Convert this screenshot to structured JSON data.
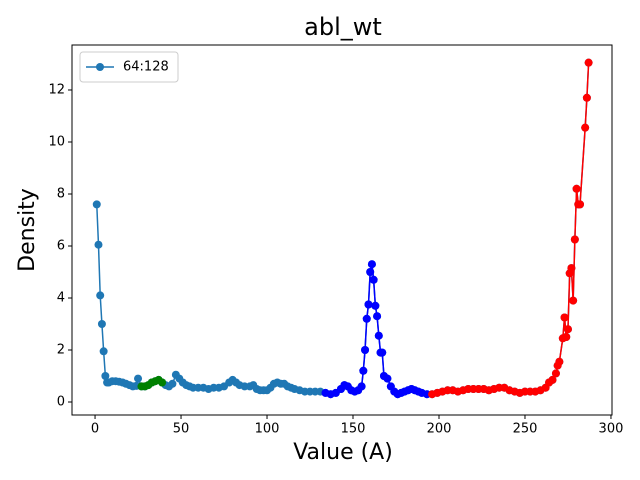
{
  "chart_data": {
    "type": "line",
    "title": "abl_wt",
    "xlabel": "Value (A)",
    "ylabel": "Density",
    "xlim": [
      -13.4,
      300.6
    ],
    "ylim": [
      -0.5,
      13.73
    ],
    "xticks": [
      0,
      50,
      100,
      150,
      200,
      250,
      300
    ],
    "yticks": [
      0,
      2,
      4,
      6,
      8,
      10,
      12
    ],
    "legend": "upper left",
    "series": [
      {
        "name": "64:128",
        "color": "#1f77b4",
        "x": [
          1,
          2,
          3,
          4,
          5,
          6,
          7,
          8,
          10,
          12,
          14,
          16,
          18,
          20,
          22,
          24,
          25,
          27,
          29,
          31,
          33,
          35,
          37,
          39,
          41,
          43,
          45,
          47,
          49,
          51,
          53,
          55,
          57,
          60,
          63,
          66,
          69,
          72,
          75,
          78,
          80,
          82,
          84,
          87,
          90,
          92,
          94,
          96,
          98,
          100,
          102,
          104,
          106,
          108,
          110,
          112,
          114,
          116,
          119,
          122,
          125,
          128,
          131,
          134,
          137,
          140,
          143,
          145,
          147,
          149,
          151,
          153,
          155,
          156,
          157,
          158,
          159,
          160,
          161,
          162,
          163,
          164,
          165,
          166,
          167,
          168,
          170,
          172,
          174,
          176,
          178,
          180,
          182,
          184,
          186,
          188,
          190,
          193,
          196,
          199,
          202,
          205,
          208,
          211,
          214,
          217,
          220,
          223,
          226,
          229,
          232,
          235,
          238,
          241,
          244,
          247,
          250,
          253,
          256,
          259,
          262,
          264,
          266,
          268,
          269,
          270,
          272,
          273,
          274,
          275,
          276,
          277,
          278,
          279,
          280,
          281,
          282,
          285,
          286,
          287
        ],
        "values": [
          7.6,
          6.05,
          4.1,
          3.0,
          1.95,
          1.0,
          0.75,
          0.75,
          0.8,
          0.8,
          0.78,
          0.75,
          0.7,
          0.65,
          0.6,
          0.62,
          0.9,
          0.6,
          0.6,
          0.65,
          0.75,
          0.8,
          0.85,
          0.75,
          0.65,
          0.6,
          0.7,
          1.05,
          0.9,
          0.75,
          0.65,
          0.6,
          0.55,
          0.55,
          0.55,
          0.5,
          0.55,
          0.55,
          0.6,
          0.75,
          0.85,
          0.75,
          0.65,
          0.6,
          0.6,
          0.65,
          0.5,
          0.45,
          0.45,
          0.45,
          0.55,
          0.7,
          0.75,
          0.7,
          0.7,
          0.6,
          0.55,
          0.5,
          0.45,
          0.4,
          0.4,
          0.4,
          0.4,
          0.35,
          0.3,
          0.35,
          0.5,
          0.65,
          0.6,
          0.45,
          0.4,
          0.45,
          0.6,
          1.2,
          2.0,
          3.2,
          3.75,
          5.0,
          5.3,
          4.7,
          3.7,
          3.3,
          2.55,
          1.9,
          1.9,
          1.0,
          0.9,
          0.6,
          0.4,
          0.3,
          0.35,
          0.4,
          0.45,
          0.5,
          0.45,
          0.4,
          0.35,
          0.3,
          0.3,
          0.35,
          0.4,
          0.45,
          0.45,
          0.4,
          0.45,
          0.5,
          0.5,
          0.5,
          0.5,
          0.45,
          0.5,
          0.55,
          0.55,
          0.45,
          0.4,
          0.35,
          0.4,
          0.4,
          0.4,
          0.45,
          0.55,
          0.75,
          0.85,
          1.1,
          1.4,
          1.55,
          2.45,
          3.25,
          2.5,
          2.8,
          4.95,
          5.15,
          3.9,
          6.25,
          8.2,
          7.6,
          7.6,
          10.55,
          11.7,
          13.05
        ]
      },
      {
        "color": "#008000",
        "x": [
          27,
          29,
          31,
          33,
          35,
          37,
          39
        ],
        "values": [
          0.6,
          0.6,
          0.65,
          0.75,
          0.8,
          0.85,
          0.75
        ]
      },
      {
        "color": "#0000ff",
        "x": [
          134,
          137,
          140,
          143,
          145,
          147,
          149,
          151,
          153,
          155,
          156,
          157,
          158,
          159,
          160,
          161,
          162,
          163,
          164,
          165,
          166,
          167,
          168,
          170,
          172,
          174,
          176,
          178,
          180,
          182,
          184,
          186,
          188,
          190,
          193
        ],
        "values": [
          0.35,
          0.3,
          0.35,
          0.5,
          0.65,
          0.6,
          0.45,
          0.4,
          0.45,
          0.6,
          1.2,
          2.0,
          3.2,
          3.75,
          5.0,
          5.3,
          4.7,
          3.7,
          3.3,
          2.55,
          1.9,
          1.9,
          1.0,
          0.9,
          0.6,
          0.4,
          0.3,
          0.35,
          0.4,
          0.45,
          0.5,
          0.45,
          0.4,
          0.35,
          0.3
        ]
      },
      {
        "color": "#ff0000",
        "x": [
          196,
          199,
          202,
          205,
          208,
          211,
          214,
          217,
          220,
          223,
          226,
          229,
          232,
          235,
          238,
          241,
          244,
          247,
          250,
          253,
          256,
          259,
          262,
          264,
          266,
          268,
          269,
          270,
          272,
          273,
          274,
          275,
          276,
          277,
          278,
          279,
          280,
          281,
          282,
          285,
          286,
          287
        ],
        "values": [
          0.3,
          0.35,
          0.4,
          0.45,
          0.45,
          0.4,
          0.45,
          0.5,
          0.5,
          0.5,
          0.5,
          0.45,
          0.5,
          0.55,
          0.55,
          0.45,
          0.4,
          0.35,
          0.4,
          0.4,
          0.4,
          0.45,
          0.55,
          0.75,
          0.85,
          1.1,
          1.4,
          1.55,
          2.45,
          3.25,
          2.5,
          2.8,
          4.95,
          5.15,
          3.9,
          6.25,
          8.2,
          7.6,
          7.6,
          10.55,
          11.7,
          13.05
        ]
      }
    ]
  }
}
